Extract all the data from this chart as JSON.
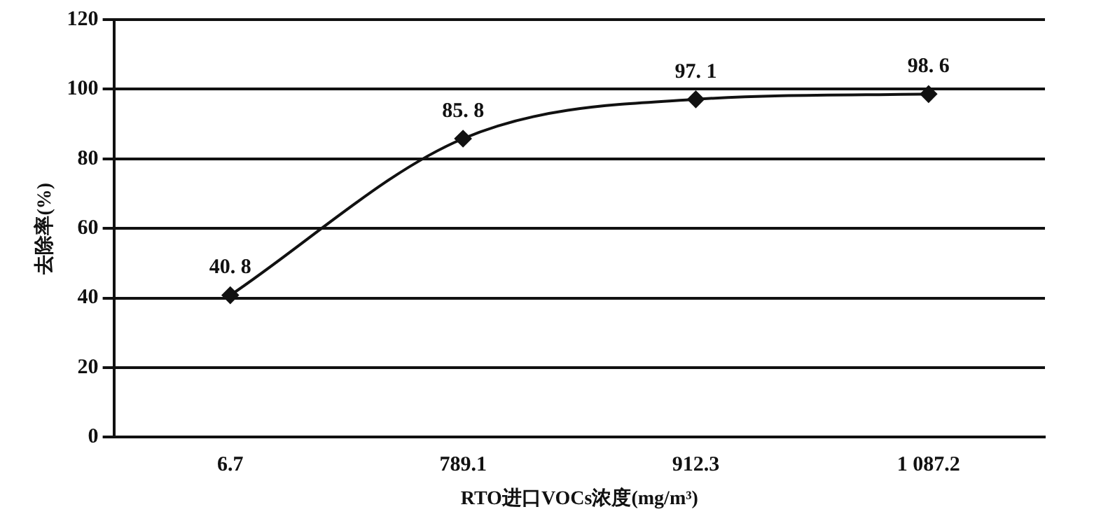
{
  "chart_data": {
    "type": "line",
    "categories": [
      "6.7",
      "789.1",
      "912.3",
      "1 087.2"
    ],
    "series": [
      {
        "color": "#111111",
        "values": [
          40.8,
          85.8,
          97.1,
          98.6
        ]
      }
    ],
    "xlabel": "RTO进口VOCs浓度(mg/m³)",
    "ylabel": "去除率(%)",
    "ylim": [
      0,
      120
    ],
    "yticks": [
      0,
      20,
      40,
      60,
      80,
      100,
      120
    ],
    "grid": "y",
    "legend": false,
    "marker": "diamond",
    "data_labels": true
  }
}
